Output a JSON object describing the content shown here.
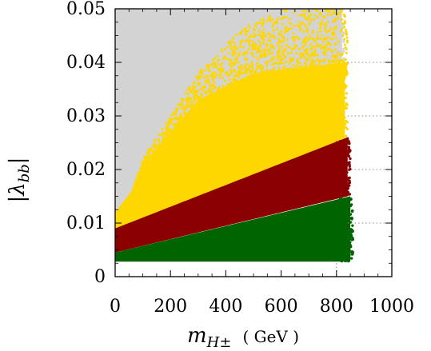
{
  "chart_data": {
    "type": "scatter",
    "xlabel_symbol": "m",
    "xlabel_sub": "H±",
    "xlabel_unit": "( GeV )",
    "ylabel_symbol": "|λ",
    "ylabel_sub": "bb",
    "ylabel_close": "|",
    "xlim": [
      0,
      1000
    ],
    "ylim": [
      0,
      0.05
    ],
    "xticks": [
      0,
      200,
      400,
      600,
      800,
      1000
    ],
    "xtick_labels": [
      "0",
      "200",
      "400",
      "600",
      "800",
      "1000"
    ],
    "yticks": [
      0,
      0.01,
      0.02,
      0.03,
      0.04,
      0.05
    ],
    "ytick_labels": [
      "0",
      "0.01",
      "0.02",
      "0.03",
      "0.04",
      "0.05"
    ],
    "grid": "dotted, partial (right side)",
    "colors": {
      "gray": "#d3d3d3",
      "yellow": "#ffd700",
      "darkred": "#8b0000",
      "green": "#006400"
    },
    "series": [
      {
        "color_key": "gray",
        "description_points": [
          [
            0,
            0.05
          ],
          [
            0,
            0.011
          ],
          [
            100,
            0.018
          ],
          [
            300,
            0.05
          ]
        ],
        "regions": [
          {
            "x": [
              0,
              830
            ],
            "y_lower_at_x0": 0.011,
            "y_lower_at_x100": 0.018,
            "y_upper": 0.05
          }
        ]
      },
      {
        "color_key": "yellow",
        "regions": [
          {
            "x": [
              0,
              850
            ],
            "y_lower": [
              [
                0,
                0.008
              ],
              [
                840,
                0.026
              ]
            ],
            "y_upper": [
              [
                0,
                0.012
              ],
              [
                60,
                0.017
              ],
              [
                100,
                0.022
              ],
              [
                300,
                0.04
              ],
              [
                450,
                0.05
              ],
              [
                850,
                0.05
              ]
            ]
          }
        ]
      },
      {
        "color_key": "darkred",
        "regions": [
          {
            "x": [
              0,
              840
            ],
            "y_lower": [
              [
                0,
                0.0045
              ],
              [
                840,
                0.015
              ]
            ],
            "y_upper": [
              [
                0,
                0.009
              ],
              [
                840,
                0.026
              ]
            ]
          }
        ]
      },
      {
        "color_key": "green",
        "regions": [
          {
            "x": [
              0,
              850
            ],
            "y_lower": [
              [
                0,
                0.0028
              ],
              [
                850,
                0.0028
              ]
            ],
            "y_upper": [
              [
                0,
                0.0045
              ],
              [
                850,
                0.015
              ]
            ]
          }
        ]
      }
    ]
  }
}
